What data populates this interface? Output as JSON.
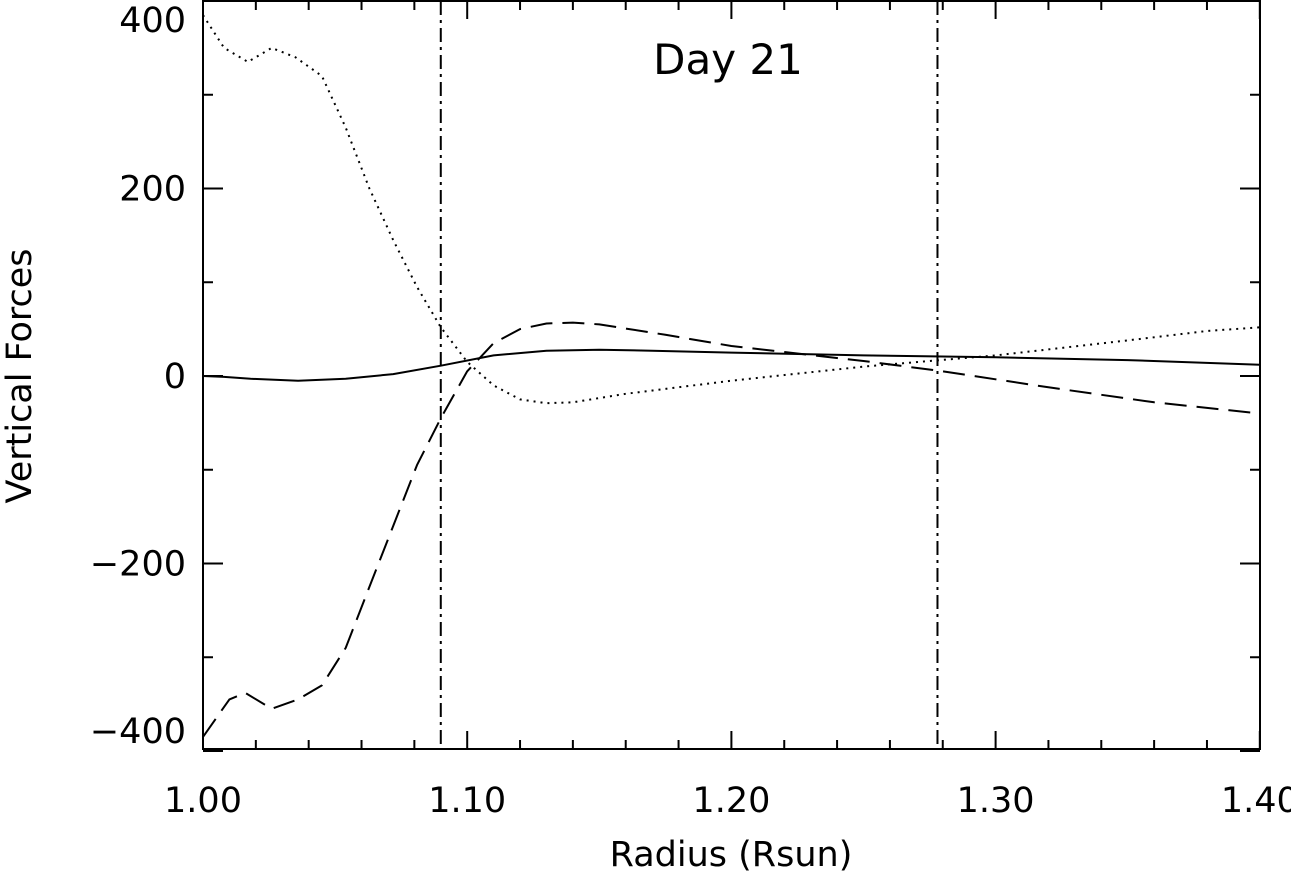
{
  "chart_data": {
    "type": "line",
    "title": "Day 21",
    "xlabel": "Radius (Rsun)",
    "ylabel": "Vertical Forces",
    "xlim": [
      1.0,
      1.4
    ],
    "ylim": [
      -400,
      400
    ],
    "x_ticks": [
      1.0,
      1.1,
      1.2,
      1.3,
      1.4
    ],
    "x_tick_labels": [
      "1.00",
      "1.10",
      "1.20",
      "1.30",
      "1.40"
    ],
    "y_ticks": [
      -400,
      -200,
      0,
      200,
      400
    ],
    "y_tick_labels": [
      "−400",
      "−200",
      "0",
      "200",
      "400"
    ],
    "grid": false,
    "vertical_lines": [
      {
        "x": 1.09,
        "style": "dash-dot"
      },
      {
        "x": 1.278,
        "style": "dash-dot"
      }
    ],
    "series": [
      {
        "style": "solid",
        "x": [
          1.0,
          1.008,
          1.018,
          1.036,
          1.054,
          1.072,
          1.09,
          1.11,
          1.13,
          1.15,
          1.17,
          1.2,
          1.25,
          1.3,
          1.35,
          1.4
        ],
        "y": [
          0,
          -1,
          -3,
          -5,
          -3,
          2,
          11,
          22,
          27,
          28,
          27,
          25,
          22,
          20,
          17,
          12
        ]
      },
      {
        "style": "dashed",
        "x": [
          1.0,
          1.01,
          1.016,
          1.026,
          1.036,
          1.045,
          1.054,
          1.063,
          1.072,
          1.081,
          1.09,
          1.1,
          1.11,
          1.12,
          1.13,
          1.14,
          1.15,
          1.175,
          1.2,
          1.25,
          1.28,
          1.32,
          1.36,
          1.4
        ],
        "y": [
          -385,
          -345,
          -338,
          -355,
          -345,
          -330,
          -290,
          -225,
          -160,
          -95,
          -45,
          5,
          35,
          50,
          56,
          57,
          55,
          44,
          32,
          16,
          5,
          -12,
          -28,
          -40
        ]
      },
      {
        "style": "dotted",
        "x": [
          1.0,
          1.008,
          1.017,
          1.026,
          1.035,
          1.045,
          1.054,
          1.063,
          1.072,
          1.081,
          1.09,
          1.1,
          1.11,
          1.12,
          1.13,
          1.14,
          1.16,
          1.2,
          1.25,
          1.3,
          1.35,
          1.38,
          1.4
        ],
        "y": [
          385,
          350,
          335,
          350,
          340,
          320,
          265,
          200,
          145,
          95,
          52,
          15,
          -10,
          -25,
          -29,
          -28,
          -19,
          -5,
          10,
          22,
          38,
          48,
          52
        ]
      }
    ]
  }
}
